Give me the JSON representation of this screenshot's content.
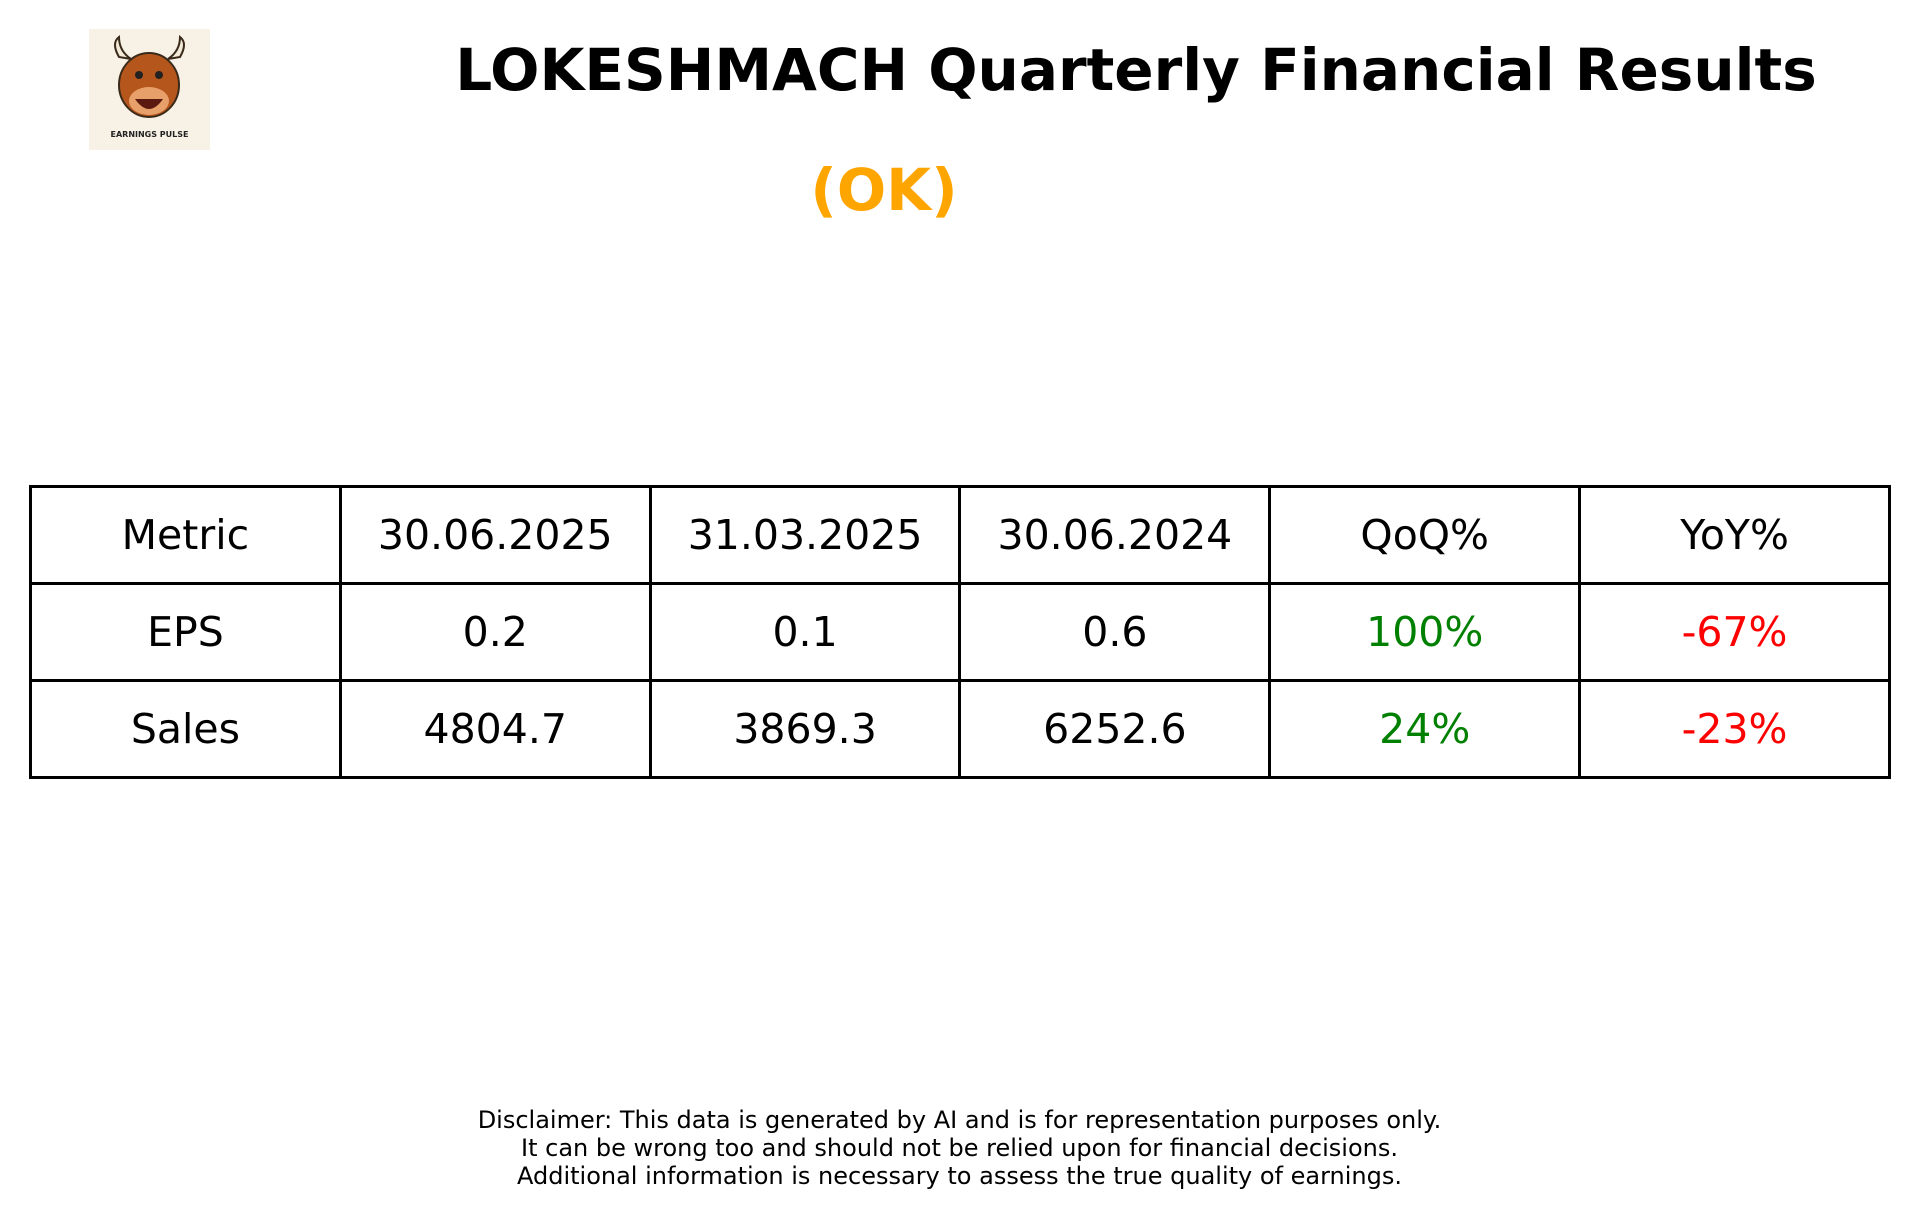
{
  "header": {
    "title": "LOKESHMACH Quarterly Financial Results",
    "subtitle": "(OK)",
    "logo_text": "EARNINGS PULSE"
  },
  "table": {
    "columns": [
      "Metric",
      "30.06.2025",
      "31.03.2025",
      "30.06.2024",
      "QoQ%",
      "YoY%"
    ],
    "rows": [
      [
        "EPS",
        0.2,
        0.1,
        0.6,
        "100%",
        "-67%"
      ],
      [
        "Sales",
        4804.7,
        3869.3,
        6252.6,
        "24%",
        "-23%"
      ]
    ]
  },
  "disclaimer": [
    "Disclaimer: This data is generated by AI and is for representation purposes only.",
    "It can be wrong too and should not be relied upon for financial decisions.",
    "Additional information is necessary to assess the true quality of earnings."
  ]
}
